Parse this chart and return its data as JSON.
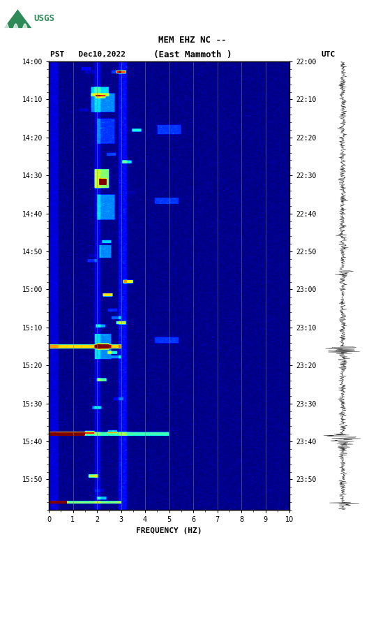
{
  "title_line1": "MEM EHZ NC --",
  "title_line2": "(East Mammoth )",
  "left_label": "PST   Dec10,2022",
  "right_label": "UTC",
  "xlabel": "FREQUENCY (HZ)",
  "pst_ticks": [
    "14:00",
    "14:10",
    "14:20",
    "14:30",
    "14:40",
    "14:50",
    "15:00",
    "15:10",
    "15:20",
    "15:30",
    "15:40",
    "15:50"
  ],
  "utc_ticks": [
    "22:00",
    "22:10",
    "22:20",
    "22:30",
    "22:40",
    "22:50",
    "23:00",
    "23:10",
    "23:20",
    "23:30",
    "23:40",
    "23:50"
  ],
  "freq_ticks": [
    0,
    1,
    2,
    3,
    4,
    5,
    6,
    7,
    8,
    9,
    10
  ],
  "freq_gridlines": [
    1,
    2,
    3,
    4,
    5,
    6,
    7,
    8,
    9
  ],
  "fig_bg": "#ffffff",
  "spectrogram_cmap": "jet"
}
